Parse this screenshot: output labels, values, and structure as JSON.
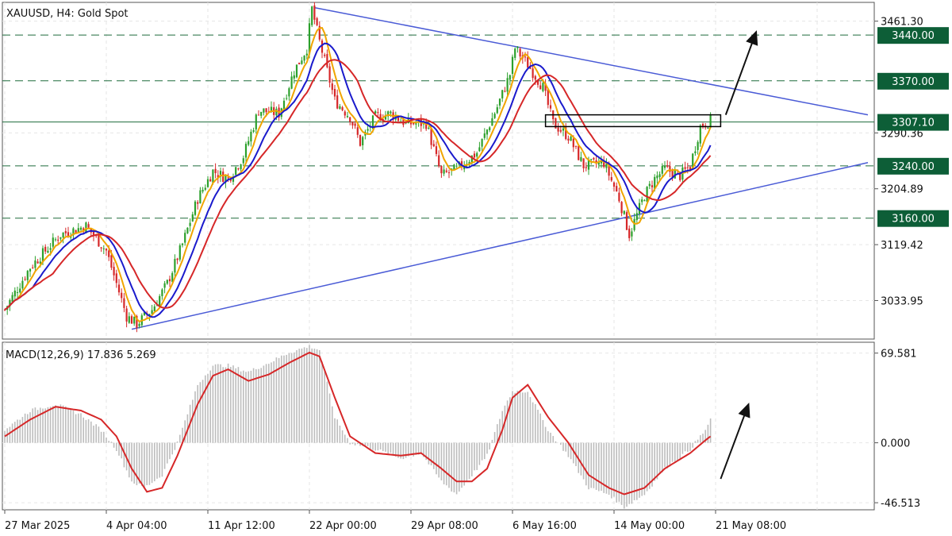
{
  "symbol_title": "XAUUSD, H4:  Gold Spot",
  "macd_title": "MACD(12,26,9) 17.836 5.269",
  "colors": {
    "bull": "#2ca02c",
    "bear": "#d62728",
    "ma_fast": "#f0a500",
    "ma_mid": "#1a1acc",
    "ma_slow": "#d62728",
    "trendline": "#4a5bd6",
    "level_line": "#1e6b3c",
    "label_bg": "#0d5e37",
    "macd_hist": "#bdbdbd",
    "macd_signal": "#d62728",
    "arrow": "#111111"
  },
  "chart_data": [
    {
      "type": "candlestick",
      "title": "XAUUSD, H4:  Gold Spot",
      "ylim": [
        2975,
        3490
      ],
      "y_ticks": [
        "3461.30",
        "3290.36",
        "3204.89",
        "3119.42",
        "3033.95"
      ],
      "y_tick_values": [
        3461.3,
        3290.36,
        3204.89,
        3119.42,
        3033.95
      ],
      "x_ticks": [
        "27 Mar 2025",
        "4 Apr 04:00",
        "11 Apr 12:00",
        "22 Apr 00:00",
        "29 Apr 08:00",
        "6 May 16:00",
        "14 May 00:00",
        "21 May 08:00"
      ],
      "x_tick_bars": [
        0,
        40,
        80,
        120,
        160,
        200,
        240,
        280
      ],
      "bar_count": 340,
      "horizontal_levels": [
        {
          "label": "3440.00",
          "value": 3440,
          "style": "dashed"
        },
        {
          "label": "3370.00",
          "value": 3370,
          "style": "dashed"
        },
        {
          "label": "3307.10",
          "value": 3307.1,
          "style": "solid"
        },
        {
          "label": "3240.00",
          "value": 3240,
          "style": "dashed"
        },
        {
          "label": "3160.00",
          "value": 3160,
          "style": "dashed"
        }
      ],
      "trendlines": [
        {
          "name": "upper",
          "from": [
            122,
            3482
          ],
          "to": [
            340,
            3318
          ]
        },
        {
          "name": "lower",
          "from": [
            50,
            2990
          ],
          "to": [
            340,
            3245
          ]
        }
      ],
      "price_path": [
        [
          0,
          3020
        ],
        [
          10,
          3085
        ],
        [
          22,
          3135
        ],
        [
          32,
          3148
        ],
        [
          40,
          3110
        ],
        [
          48,
          3010
        ],
        [
          52,
          2998
        ],
        [
          58,
          3020
        ],
        [
          64,
          3060
        ],
        [
          70,
          3120
        ],
        [
          76,
          3190
        ],
        [
          82,
          3232
        ],
        [
          88,
          3220
        ],
        [
          94,
          3255
        ],
        [
          100,
          3325
        ],
        [
          108,
          3320
        ],
        [
          114,
          3385
        ],
        [
          119,
          3420
        ],
        [
          121,
          3480
        ],
        [
          124,
          3430
        ],
        [
          130,
          3340
        ],
        [
          136,
          3315
        ],
        [
          140,
          3275
        ],
        [
          146,
          3315
        ],
        [
          152,
          3320
        ],
        [
          158,
          3305
        ],
        [
          166,
          3305
        ],
        [
          172,
          3225
        ],
        [
          178,
          3235
        ],
        [
          186,
          3260
        ],
        [
          194,
          3330
        ],
        [
          199,
          3380
        ],
        [
          201,
          3420
        ],
        [
          206,
          3395
        ],
        [
          212,
          3360
        ],
        [
          216,
          3305
        ],
        [
          222,
          3285
        ],
        [
          228,
          3240
        ],
        [
          236,
          3245
        ],
        [
          242,
          3190
        ],
        [
          246,
          3135
        ],
        [
          252,
          3195
        ],
        [
          256,
          3220
        ],
        [
          260,
          3235
        ],
        [
          266,
          3225
        ],
        [
          270,
          3240
        ],
        [
          274,
          3300
        ],
        [
          278,
          3310
        ]
      ],
      "moving_averages": [
        {
          "color": "ma_fast",
          "period": 6
        },
        {
          "color": "ma_mid",
          "period": 12
        },
        {
          "color": "ma_slow",
          "period": 20
        }
      ],
      "box": {
        "from_bar": 213,
        "to_bar": 282,
        "low": 3300,
        "high": 3318
      },
      "arrow": {
        "from": [
          284,
          3318
        ],
        "to": [
          296,
          3445
        ]
      }
    },
    {
      "type": "histogram",
      "title": "MACD(12,26,9) 17.836 5.269",
      "ylim": [
        -52,
        78
      ],
      "y_ticks": [
        "69.581",
        "0.000",
        "-46.513"
      ],
      "y_tick_values": [
        69.581,
        0,
        -46.513
      ],
      "hist_path": [
        [
          0,
          10
        ],
        [
          10,
          25
        ],
        [
          20,
          30
        ],
        [
          30,
          22
        ],
        [
          38,
          10
        ],
        [
          44,
          -5
        ],
        [
          50,
          -30
        ],
        [
          55,
          -35
        ],
        [
          62,
          -25
        ],
        [
          68,
          0
        ],
        [
          76,
          45
        ],
        [
          82,
          60
        ],
        [
          88,
          60
        ],
        [
          96,
          55
        ],
        [
          104,
          62
        ],
        [
          112,
          70
        ],
        [
          120,
          75
        ],
        [
          124,
          72
        ],
        [
          130,
          20
        ],
        [
          136,
          0
        ],
        [
          146,
          -5
        ],
        [
          156,
          -12
        ],
        [
          164,
          -8
        ],
        [
          172,
          -30
        ],
        [
          178,
          -40
        ],
        [
          184,
          -25
        ],
        [
          190,
          -10
        ],
        [
          196,
          25
        ],
        [
          200,
          40
        ],
        [
          206,
          40
        ],
        [
          214,
          10
        ],
        [
          222,
          -10
        ],
        [
          230,
          -35
        ],
        [
          238,
          -40
        ],
        [
          244,
          -50
        ],
        [
          252,
          -40
        ],
        [
          260,
          -20
        ],
        [
          270,
          -5
        ],
        [
          276,
          10
        ],
        [
          280,
          25
        ]
      ],
      "signal_path": [
        [
          0,
          5
        ],
        [
          10,
          18
        ],
        [
          20,
          28
        ],
        [
          30,
          25
        ],
        [
          38,
          18
        ],
        [
          44,
          5
        ],
        [
          50,
          -20
        ],
        [
          56,
          -38
        ],
        [
          62,
          -35
        ],
        [
          68,
          -10
        ],
        [
          76,
          30
        ],
        [
          82,
          52
        ],
        [
          88,
          57
        ],
        [
          96,
          48
        ],
        [
          104,
          53
        ],
        [
          112,
          62
        ],
        [
          120,
          70
        ],
        [
          124,
          67
        ],
        [
          130,
          35
        ],
        [
          136,
          5
        ],
        [
          146,
          -8
        ],
        [
          156,
          -10
        ],
        [
          164,
          -8
        ],
        [
          172,
          -20
        ],
        [
          178,
          -30
        ],
        [
          184,
          -30
        ],
        [
          190,
          -20
        ],
        [
          196,
          10
        ],
        [
          200,
          35
        ],
        [
          206,
          45
        ],
        [
          214,
          20
        ],
        [
          222,
          0
        ],
        [
          230,
          -25
        ],
        [
          238,
          -35
        ],
        [
          244,
          -40
        ],
        [
          252,
          -35
        ],
        [
          260,
          -20
        ],
        [
          270,
          -8
        ],
        [
          276,
          2
        ],
        [
          280,
          8
        ]
      ],
      "arrow": {
        "from": [
          282,
          -28
        ],
        "to": [
          293,
          30
        ]
      }
    }
  ]
}
